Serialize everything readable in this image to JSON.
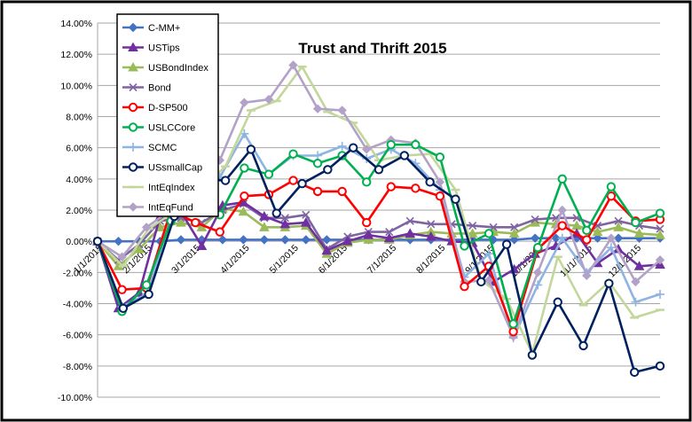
{
  "chart_data": {
    "type": "line",
    "title": "Trust and Thrift 2015",
    "xlabel": "",
    "ylabel": "",
    "ylim": [
      -10,
      14
    ],
    "y_ticks": [
      "14.00%",
      "12.00%",
      "10.00%",
      "8.00%",
      "6.00%",
      "4.00%",
      "2.00%",
      "0.00%",
      "-2.00%",
      "-4.00%",
      "-6.00%",
      "-8.00%",
      "-10.00%"
    ],
    "x_ticks": [
      "1/1/2015",
      "2/1/2015",
      "3/1/2015",
      "4/1/2015",
      "5/1/2015",
      "6/1/2015",
      "7/1/2015",
      "8/1/2015",
      "9/1/2015",
      "10/1/2015",
      "11/1/2015",
      "12/1/2015"
    ],
    "grid": true,
    "legend_position": "top-left",
    "series": [
      {
        "name": "C-MM+",
        "color": "#4472C4",
        "marker": "diamond",
        "values": [
          0.0,
          0.0,
          0.0,
          0.0,
          0.1,
          0.1,
          0.1,
          0.1,
          0.1,
          0.1,
          0.1,
          0.1,
          0.1,
          0.1,
          0.1,
          0.1,
          0.1,
          0.1,
          0.1,
          0.1,
          0.1,
          0.2,
          0.2,
          0.2,
          0.2,
          0.2,
          0.2,
          0.2
        ]
      },
      {
        "name": "USTips",
        "color": "#7030A0",
        "marker": "triangle",
        "values": [
          0.0,
          -4.3,
          -3.3,
          1.6,
          1.9,
          -0.3,
          2.3,
          2.5,
          1.6,
          1.1,
          1.2,
          -0.6,
          0.0,
          0.4,
          0.2,
          0.5,
          0.3,
          0.0,
          -0.1,
          -2.6,
          -1.8,
          -0.8,
          -0.3,
          0.5,
          -1.4,
          -0.5,
          -1.6,
          -1.5
        ]
      },
      {
        "name": "USBondIndex",
        "color": "#9BBB59",
        "marker": "triangle",
        "values": [
          0.0,
          -1.6,
          -0.5,
          0.9,
          1.2,
          0.9,
          2.1,
          1.9,
          0.9,
          0.9,
          1.0,
          -0.8,
          -0.1,
          0.1,
          0.1,
          0.4,
          0.6,
          0.5,
          0.5,
          0.6,
          0.5,
          1.2,
          1.1,
          1.0,
          0.6,
          0.9,
          0.5,
          0.4
        ]
      },
      {
        "name": "Bond",
        "color": "#8064A2",
        "marker": "x",
        "values": [
          0.0,
          -1.2,
          -0.2,
          1.3,
          1.5,
          1.2,
          2.0,
          2.4,
          1.5,
          1.5,
          1.7,
          -0.5,
          0.3,
          0.6,
          0.6,
          1.3,
          1.1,
          1.1,
          1.0,
          0.9,
          0.9,
          1.4,
          1.5,
          1.5,
          1.0,
          1.3,
          1.0,
          0.8
        ]
      },
      {
        "name": "D-SP500",
        "color": "#FF0000",
        "marker": "circle",
        "values": [
          0.0,
          -3.1,
          -3.0,
          2.0,
          1.2,
          0.6,
          2.9,
          3.0,
          3.9,
          3.2,
          3.2,
          1.2,
          3.5,
          3.4,
          2.9,
          -2.9,
          -1.6,
          -5.8,
          -0.5,
          1.0,
          0.1,
          2.9,
          1.3,
          1.4
        ]
      },
      {
        "name": "USLCCore",
        "color": "#00B050",
        "marker": "circle",
        "values": [
          0.0,
          -4.5,
          -2.8,
          1.3,
          2.9,
          1.7,
          4.7,
          4.3,
          5.6,
          5.0,
          5.5,
          3.8,
          6.2,
          6.2,
          5.4,
          -0.3,
          0.5,
          -5.3,
          -0.4,
          4.0,
          0.7,
          3.5,
          1.2,
          1.8
        ]
      },
      {
        "name": "SCMC",
        "color": "#8EB4E3",
        "marker": "plus",
        "values": [
          0.0,
          -4.2,
          -3.4,
          1.5,
          3.8,
          4.1,
          6.9,
          4.3,
          5.5,
          5.5,
          6.1,
          5.3,
          5.9,
          5.0,
          3.3,
          -2.3,
          -0.8,
          -6.2,
          -2.8,
          0.2,
          -2.0,
          -0.4,
          -3.9,
          -3.4
        ]
      },
      {
        "name": "USsmallCap",
        "color": "#002060",
        "marker": "circle",
        "values": [
          0.0,
          -4.3,
          -3.4,
          1.6,
          4.0,
          3.9,
          5.9,
          1.8,
          3.7,
          4.6,
          6.0,
          4.6,
          5.5,
          3.8,
          2.7,
          -2.6,
          -0.2,
          -7.3,
          -3.9,
          -6.7,
          -2.7,
          -8.4,
          -8.0
        ]
      },
      {
        "name": "IntEqIndex",
        "color": "#C3D69B",
        "marker": "dash",
        "values": [
          0.0,
          -1.6,
          0.8,
          1.9,
          3.3,
          4.8,
          8.4,
          9.0,
          11.2,
          8.3,
          7.6,
          5.2,
          5.5,
          5.6,
          3.3,
          -2.5,
          -3.7,
          -7.2,
          -1.0,
          -4.1,
          -2.6,
          -4.9,
          -4.4
        ]
      },
      {
        "name": "IntEqFund",
        "color": "#B3A2C7",
        "marker": "diamond",
        "values": [
          0.0,
          -1.0,
          0.9,
          2.0,
          3.9,
          5.2,
          8.9,
          9.1,
          11.3,
          8.5,
          8.4,
          5.9,
          6.5,
          6.3,
          3.8,
          -2.6,
          -2.5,
          -6.1,
          -2.0,
          2.0,
          -2.2,
          0.2,
          -2.6,
          -1.2
        ]
      }
    ]
  }
}
